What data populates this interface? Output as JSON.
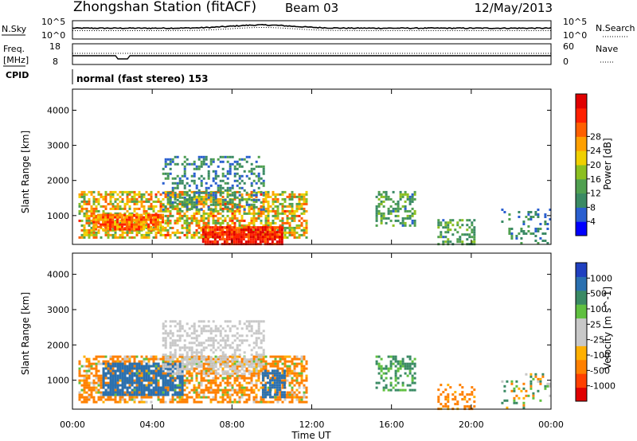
{
  "header": {
    "station": "Zhongshan Station (fitACF)",
    "beam": "Beam 03",
    "date": "12/May/2013"
  },
  "top_panels": {
    "nsky": {
      "label": "N.Sky",
      "left_ticks": [
        "10^5",
        "10^0"
      ],
      "right_label": "N.Search",
      "right_ticks": [
        "10^5",
        "10^0"
      ]
    },
    "freq": {
      "label_lines": [
        "Freq.",
        "[MHz]"
      ],
      "left_ticks": [
        "18",
        "8"
      ],
      "right_label": "Nave",
      "right_ticks": [
        "60",
        "0"
      ]
    },
    "cpid": {
      "label": "CPID",
      "program": "normal (fast stereo) 153"
    }
  },
  "colors": {
    "power": [
      "#0000ff",
      "#2a5fd0",
      "#3a8a64",
      "#50a050",
      "#8cc020",
      "#f0d000",
      "#ffa000",
      "#ff6000",
      "#ff2000",
      "#e00000"
    ],
    "velocity": [
      "#2040c0",
      "#2a70b0",
      "#3a8a64",
      "#60c040",
      "#c8c8c8",
      "#c8c8c8",
      "#ffb000",
      "#ff8000",
      "#ff4000",
      "#e00000"
    ]
  },
  "chart_data": [
    {
      "type": "heatmap",
      "name": "power",
      "ylabel": "Slant Range [km]",
      "yticks": [
        "1000",
        "2000",
        "3000",
        "4000"
      ],
      "ylim": [
        180,
        4600
      ],
      "xlim": [
        0,
        24
      ],
      "colorbar": {
        "label": "Power [dB]",
        "ticks": [
          "4",
          "8",
          "12",
          "16",
          "20",
          "24",
          "28"
        ],
        "range": [
          0,
          32
        ]
      },
      "regions": [
        {
          "x": [
            0.3,
            11.8
          ],
          "y": [
            400,
            1700
          ],
          "v": [
            10,
            26
          ],
          "density": 0.62
        },
        {
          "x": [
            4.5,
            9.6
          ],
          "y": [
            1200,
            2700
          ],
          "v": [
            4,
            12
          ],
          "density": 0.35
        },
        {
          "x": [
            6.5,
            10.5
          ],
          "y": [
            200,
            700
          ],
          "v": [
            24,
            32
          ],
          "density": 0.9
        },
        {
          "x": [
            1.0,
            4.5
          ],
          "y": [
            600,
            1050
          ],
          "v": [
            18,
            28
          ],
          "density": 0.8
        },
        {
          "x": [
            15.2,
            17.2
          ],
          "y": [
            700,
            1700
          ],
          "v": [
            6,
            14
          ],
          "density": 0.45
        },
        {
          "x": [
            18.3,
            20.2
          ],
          "y": [
            200,
            900
          ],
          "v": [
            6,
            14
          ],
          "density": 0.4
        },
        {
          "x": [
            21.5,
            24.0
          ],
          "y": [
            200,
            1200
          ],
          "v": [
            4,
            12
          ],
          "density": 0.2
        }
      ]
    },
    {
      "type": "heatmap",
      "name": "velocity",
      "ylabel": "Slant Range [km]",
      "yticks": [
        "1000",
        "2000",
        "3000",
        "4000"
      ],
      "ylim": [
        180,
        4600
      ],
      "xlim": [
        0,
        24
      ],
      "colorbar": {
        "label": "Velocity [m s^-1]",
        "ticks": [
          "1000",
          "500",
          "100",
          "25",
          "-25",
          "-100",
          "-500",
          "-1000"
        ]
      },
      "regions": [
        {
          "x": [
            0.3,
            11.8
          ],
          "y": [
            400,
            1700
          ],
          "v": [
            -500,
            100
          ],
          "density": 0.62
        },
        {
          "x": [
            1.5,
            5.5
          ],
          "y": [
            600,
            1500
          ],
          "v": [
            500,
            1000
          ],
          "density": 0.75
        },
        {
          "x": [
            4.5,
            9.6
          ],
          "y": [
            1200,
            2700
          ],
          "v": [
            -25,
            25
          ],
          "density": 0.45
        },
        {
          "x": [
            9.5,
            10.6
          ],
          "y": [
            500,
            1300
          ],
          "v": [
            500,
            1000
          ],
          "density": 0.7
        },
        {
          "x": [
            15.2,
            17.2
          ],
          "y": [
            700,
            1700
          ],
          "v": [
            25,
            300
          ],
          "density": 0.45
        },
        {
          "x": [
            18.3,
            20.2
          ],
          "y": [
            200,
            900
          ],
          "v": [
            -400,
            -50
          ],
          "density": 0.4
        },
        {
          "x": [
            21.5,
            24.0
          ],
          "y": [
            200,
            1200
          ],
          "v": [
            -200,
            200
          ],
          "density": 0.2
        }
      ]
    }
  ],
  "xaxis": {
    "label": "Time UT",
    "ticks": [
      "00:00",
      "04:00",
      "08:00",
      "12:00",
      "16:00",
      "20:00",
      "00:00"
    ]
  }
}
